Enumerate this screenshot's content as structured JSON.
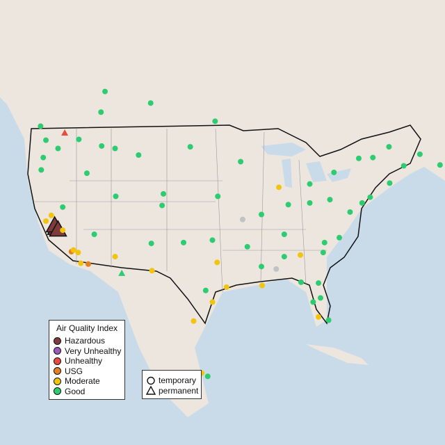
{
  "legend": {
    "title": "Air Quality Index",
    "categories": [
      {
        "label": "Hazardous",
        "color": "#7f3b3b"
      },
      {
        "label": "Very Unhealthy",
        "color": "#9b59b6"
      },
      {
        "label": "Unhealthy",
        "color": "#e74c3c"
      },
      {
        "label": "USG",
        "color": "#e67e22"
      },
      {
        "label": "Moderate",
        "color": "#f1c40f"
      },
      {
        "label": "Good",
        "color": "#2ecc71"
      }
    ],
    "no_data_color": "#bdc3c7"
  },
  "shape_legend": {
    "temporary": "temporary",
    "permanent": "permanent"
  },
  "sites": [
    {
      "lon": -120.8,
      "lat": 37.0,
      "aqi": "Hazardous",
      "type": "permanent"
    },
    {
      "lon": -121.0,
      "lat": 37.3,
      "aqi": "Hazardous",
      "type": "permanent"
    },
    {
      "lon": -120.5,
      "lat": 36.8,
      "aqi": "Hazardous",
      "type": "permanent"
    },
    {
      "lon": -119.5,
      "lat": 48.5,
      "aqi": "Unhealthy",
      "type": "permanent"
    },
    {
      "lon": -118.5,
      "lat": 34.1,
      "aqi": "USG",
      "type": "temporary"
    },
    {
      "lon": -117.5,
      "lat": 34.0,
      "aqi": "Moderate",
      "type": "temporary"
    },
    {
      "lon": -118.2,
      "lat": 34.3,
      "aqi": "Moderate",
      "type": "temporary"
    },
    {
      "lon": -121.5,
      "lat": 38.5,
      "aqi": "Moderate",
      "type": "temporary"
    },
    {
      "lon": -122.3,
      "lat": 37.8,
      "aqi": "Moderate",
      "type": "temporary"
    },
    {
      "lon": -119.8,
      "lat": 36.7,
      "aqi": "Moderate",
      "type": "temporary"
    },
    {
      "lon": -112.0,
      "lat": 33.5,
      "aqi": "Moderate",
      "type": "temporary"
    },
    {
      "lon": -106.5,
      "lat": 31.8,
      "aqi": "Moderate",
      "type": "temporary"
    },
    {
      "lon": -97.5,
      "lat": 28.0,
      "aqi": "Moderate",
      "type": "temporary"
    },
    {
      "lon": -95.4,
      "lat": 29.8,
      "aqi": "Moderate",
      "type": "temporary"
    },
    {
      "lon": -96.8,
      "lat": 32.8,
      "aqi": "Moderate",
      "type": "temporary"
    },
    {
      "lon": -90.1,
      "lat": 30.0,
      "aqi": "Moderate",
      "type": "temporary"
    },
    {
      "lon": -87.6,
      "lat": 41.9,
      "aqi": "Moderate",
      "type": "temporary"
    },
    {
      "lon": -84.4,
      "lat": 33.7,
      "aqi": "Moderate",
      "type": "temporary"
    },
    {
      "lon": -81.7,
      "lat": 26.2,
      "aqi": "Moderate",
      "type": "temporary"
    },
    {
      "lon": -122.3,
      "lat": 47.6,
      "aqi": "Good",
      "type": "temporary"
    },
    {
      "lon": -122.7,
      "lat": 45.5,
      "aqi": "Good",
      "type": "temporary"
    },
    {
      "lon": -116.2,
      "lat": 43.6,
      "aqi": "Good",
      "type": "temporary"
    },
    {
      "lon": -117.4,
      "lat": 47.7,
      "aqi": "Good",
      "type": "temporary"
    },
    {
      "lon": -111.9,
      "lat": 40.8,
      "aqi": "Good",
      "type": "temporary"
    },
    {
      "lon": -105.0,
      "lat": 39.7,
      "aqi": "Good",
      "type": "temporary"
    },
    {
      "lon": -106.6,
      "lat": 35.1,
      "aqi": "Good",
      "type": "temporary"
    },
    {
      "lon": -108.5,
      "lat": 45.8,
      "aqi": "Good",
      "type": "temporary"
    },
    {
      "lon": -100.8,
      "lat": 46.8,
      "aqi": "Good",
      "type": "temporary"
    },
    {
      "lon": -96.7,
      "lat": 40.8,
      "aqi": "Good",
      "type": "temporary"
    },
    {
      "lon": -97.5,
      "lat": 35.5,
      "aqi": "Good",
      "type": "temporary"
    },
    {
      "lon": -93.3,
      "lat": 45.0,
      "aqi": "Good",
      "type": "temporary"
    },
    {
      "lon": -90.2,
      "lat": 38.6,
      "aqi": "Good",
      "type": "temporary"
    },
    {
      "lon": -86.2,
      "lat": 39.8,
      "aqi": "Good",
      "type": "temporary"
    },
    {
      "lon": -83.0,
      "lat": 40.0,
      "aqi": "Good",
      "type": "temporary"
    },
    {
      "lon": -83.0,
      "lat": 42.3,
      "aqi": "Good",
      "type": "temporary"
    },
    {
      "lon": -80.0,
      "lat": 40.4,
      "aqi": "Good",
      "type": "temporary"
    },
    {
      "lon": -77.0,
      "lat": 38.9,
      "aqi": "Good",
      "type": "temporary"
    },
    {
      "lon": -75.2,
      "lat": 40.0,
      "aqi": "Good",
      "type": "temporary"
    },
    {
      "lon": -74.0,
      "lat": 40.7,
      "aqi": "Good",
      "type": "temporary"
    },
    {
      "lon": -71.1,
      "lat": 42.4,
      "aqi": "Good",
      "type": "temporary"
    },
    {
      "lon": -69.0,
      "lat": 44.5,
      "aqi": "Good",
      "type": "temporary"
    },
    {
      "lon": -80.8,
      "lat": 35.2,
      "aqi": "Good",
      "type": "temporary"
    },
    {
      "lon": -78.6,
      "lat": 35.8,
      "aqi": "Good",
      "type": "temporary"
    },
    {
      "lon": -81.0,
      "lat": 34.0,
      "aqi": "Good",
      "type": "temporary"
    },
    {
      "lon": -86.8,
      "lat": 36.2,
      "aqi": "Good",
      "type": "temporary"
    },
    {
      "lon": -86.8,
      "lat": 33.5,
      "aqi": "Good",
      "type": "temporary"
    },
    {
      "lon": -90.2,
      "lat": 32.3,
      "aqi": "Good",
      "type": "temporary"
    },
    {
      "lon": -92.3,
      "lat": 34.7,
      "aqi": "Good",
      "type": "temporary"
    },
    {
      "lon": -82.5,
      "lat": 28.0,
      "aqi": "Good",
      "type": "temporary"
    },
    {
      "lon": -81.4,
      "lat": 28.5,
      "aqi": "Good",
      "type": "temporary"
    },
    {
      "lon": -80.2,
      "lat": 25.8,
      "aqi": "Good",
      "type": "temporary"
    },
    {
      "lon": -81.7,
      "lat": 30.3,
      "aqi": "Good",
      "type": "temporary"
    },
    {
      "lon": -84.3,
      "lat": 30.4,
      "aqi": "Good",
      "type": "temporary"
    },
    {
      "lon": -98.5,
      "lat": 29.4,
      "aqi": "Good",
      "type": "temporary"
    },
    {
      "lon": -101.8,
      "lat": 35.2,
      "aqi": "Good",
      "type": "temporary"
    },
    {
      "lon": -104.8,
      "lat": 41.1,
      "aqi": "Good",
      "type": "temporary"
    },
    {
      "lon": -112.0,
      "lat": 46.6,
      "aqi": "Good",
      "type": "temporary"
    },
    {
      "lon": -114.0,
      "lat": 46.9,
      "aqi": "Good",
      "type": "temporary"
    },
    {
      "lon": -120.5,
      "lat": 46.6,
      "aqi": "Good",
      "type": "temporary"
    },
    {
      "lon": -123.0,
      "lat": 44.0,
      "aqi": "Good",
      "type": "temporary"
    },
    {
      "lon": -119.8,
      "lat": 39.5,
      "aqi": "Good",
      "type": "temporary"
    },
    {
      "lon": -115.1,
      "lat": 36.2,
      "aqi": "Good",
      "type": "temporary"
    },
    {
      "lon": -123.1,
      "lat": 49.3,
      "aqi": "Good",
      "type": "temporary"
    },
    {
      "lon": -114.1,
      "lat": 51.0,
      "aqi": "Good",
      "type": "temporary"
    },
    {
      "lon": -113.5,
      "lat": 53.5,
      "aqi": "Good",
      "type": "temporary"
    },
    {
      "lon": -106.7,
      "lat": 52.1,
      "aqi": "Good",
      "type": "temporary"
    },
    {
      "lon": -97.1,
      "lat": 49.9,
      "aqi": "Good",
      "type": "temporary"
    },
    {
      "lon": -79.4,
      "lat": 43.7,
      "aqi": "Good",
      "type": "temporary"
    },
    {
      "lon": -75.7,
      "lat": 45.4,
      "aqi": "Good",
      "type": "temporary"
    },
    {
      "lon": -73.6,
      "lat": 45.5,
      "aqi": "Good",
      "type": "temporary"
    },
    {
      "lon": -71.2,
      "lat": 46.8,
      "aqi": "Good",
      "type": "temporary"
    },
    {
      "lon": -63.6,
      "lat": 44.6,
      "aqi": "Good",
      "type": "temporary"
    },
    {
      "lon": -66.6,
      "lat": 45.9,
      "aqi": "Good",
      "type": "temporary"
    },
    {
      "lon": -99.1,
      "lat": 19.4,
      "aqi": "Moderate",
      "type": "temporary"
    },
    {
      "lon": -98.2,
      "lat": 19.0,
      "aqi": "Good",
      "type": "temporary"
    },
    {
      "lon": -100.3,
      "lat": 25.7,
      "aqi": "Moderate",
      "type": "temporary"
    },
    {
      "lon": -116.0,
      "lat": 32.6,
      "aqi": "USG",
      "type": "temporary"
    },
    {
      "lon": -117.1,
      "lat": 32.7,
      "aqi": "Moderate",
      "type": "temporary"
    },
    {
      "lon": -111.0,
      "lat": 31.5,
      "aqi": "Good",
      "type": "permanent"
    },
    {
      "lon": -93.0,
      "lat": 38.0,
      "aqi": "No data",
      "type": "temporary"
    },
    {
      "lon": -88.0,
      "lat": 32.0,
      "aqi": "No data",
      "type": "temporary"
    }
  ]
}
